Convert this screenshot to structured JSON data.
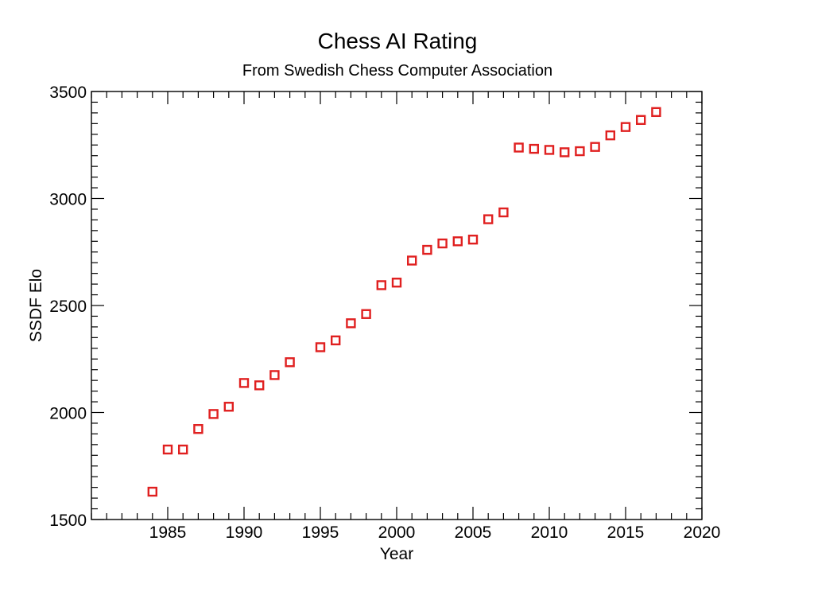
{
  "chart_data": {
    "type": "scatter",
    "title": "Chess AI Rating",
    "subtitle": "From Swedish Chess Computer Association",
    "xlabel": "Year",
    "ylabel": "SSDF Elo",
    "xlim": [
      1980,
      2020
    ],
    "ylim": [
      1500,
      3500
    ],
    "xticks": [
      1985,
      1990,
      1995,
      2000,
      2005,
      2010,
      2015,
      2020
    ],
    "yticks": [
      1500,
      2000,
      2500,
      3000,
      3500
    ],
    "x_minor_step": 1,
    "y_minor_step": 50,
    "grid": false,
    "marker": "open-square",
    "marker_color": "#e02020",
    "series": [
      {
        "x": [
          1984,
          1985,
          1986,
          1987,
          1988,
          1989,
          1990,
          1991,
          1992,
          1993,
          1995,
          1996,
          1997,
          1998,
          1999,
          2000,
          2001,
          2002,
          2003,
          2004,
          2005,
          2006,
          2007,
          2008,
          2009,
          2010,
          2011,
          2012,
          2013,
          2014,
          2015,
          2016,
          2017
        ],
        "y": [
          1630,
          1827,
          1827,
          1923,
          1993,
          2027,
          2138,
          2127,
          2175,
          2235,
          2305,
          2337,
          2417,
          2460,
          2595,
          2607,
          2710,
          2760,
          2790,
          2800,
          2808,
          2903,
          2935,
          3238,
          3232,
          3227,
          3216,
          3221,
          3241,
          3295,
          3334,
          3367,
          3404
        ]
      }
    ]
  }
}
